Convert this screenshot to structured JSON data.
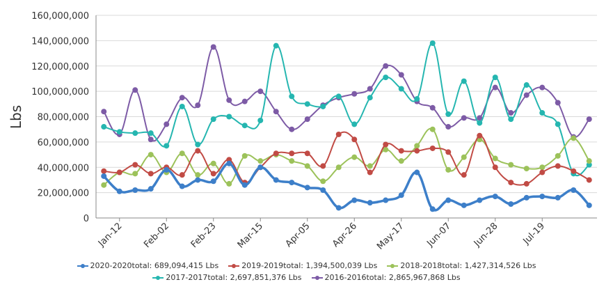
{
  "chart_data": {
    "type": "line",
    "ylabel": "Lbs",
    "ylim": [
      0,
      160000000
    ],
    "y_ticks": [
      "0",
      "20,000,000",
      "40,000,000",
      "60,000,000",
      "80,000,000",
      "100,000,000",
      "120,000,000",
      "140,000,000",
      "160,000,000"
    ],
    "x_ticks": [
      "Jan-12",
      "Feb-02",
      "Feb-23",
      "Mar-15",
      "Apr-05",
      "Apr-26",
      "May-17",
      "Jun-07",
      "Jun-28",
      "Jul-19"
    ],
    "grid": true,
    "legend_position": "bottom",
    "series": [
      {
        "name": "2020-2020",
        "total_label": "total: 689,094,415 Lbs",
        "color": "#3d7fc9",
        "values": [
          33,
          21,
          22,
          23,
          38,
          25,
          30,
          29,
          43,
          26,
          40,
          30,
          28,
          24,
          22,
          8,
          14,
          12,
          14,
          18,
          36,
          7,
          14,
          10,
          14,
          17,
          11,
          16,
          17,
          16,
          22,
          10
        ]
      },
      {
        "name": "2019-2019",
        "total_label": "total: 1,394,500,039 Lbs",
        "color": "#c14b45",
        "values": [
          37,
          36,
          42,
          35,
          40,
          34,
          53,
          35,
          46,
          28,
          40,
          51,
          51,
          51,
          41,
          66,
          62,
          36,
          58,
          53,
          53,
          55,
          52,
          34,
          65,
          40,
          28,
          27,
          36,
          41,
          37,
          30
        ]
      },
      {
        "name": "2018-2018",
        "total_label": "total: 1,427,314,526 Lbs",
        "color": "#9cc25a",
        "values": [
          26,
          36,
          35,
          50,
          36,
          51,
          34,
          43,
          27,
          49,
          45,
          50,
          45,
          41,
          29,
          40,
          48,
          41,
          54,
          45,
          57,
          70,
          38,
          48,
          62,
          47,
          42,
          39,
          40,
          49,
          63,
          45
        ]
      },
      {
        "name": "2017-2017",
        "total_label": "total: 2,697,851,376 Lbs",
        "color": "#25b6b0",
        "values": [
          72,
          68,
          67,
          67,
          57,
          88,
          58,
          78,
          80,
          73,
          77,
          136,
          96,
          90,
          88,
          96,
          74,
          95,
          111,
          102,
          94,
          138,
          82,
          108,
          75,
          111,
          78,
          105,
          83,
          74,
          35,
          42
        ]
      },
      {
        "name": "2016-2016",
        "total_label": "total: 2,865,967,868 Lbs",
        "color": "#7d5ba6",
        "values": [
          84,
          66,
          101,
          62,
          74,
          95,
          89,
          135,
          93,
          92,
          100,
          84,
          70,
          78,
          89,
          95,
          98,
          102,
          120,
          113,
          92,
          87,
          72,
          79,
          79,
          103,
          83,
          97,
          103,
          91,
          64,
          78
        ]
      }
    ]
  }
}
